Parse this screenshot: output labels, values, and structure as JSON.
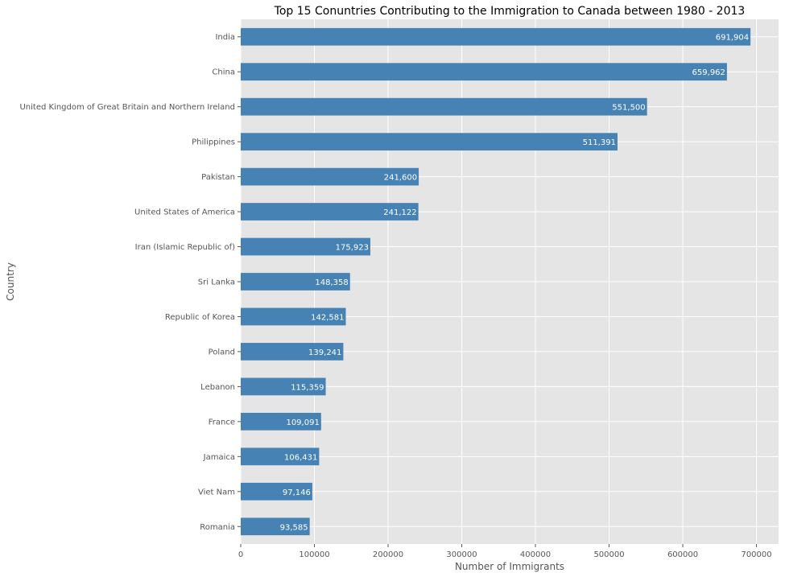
{
  "chart_data": {
    "type": "bar",
    "orientation": "horizontal",
    "title": "Top 15 Conuntries Contributing to the Immigration to Canada between 1980 - 2013",
    "xlabel": "Number of Immigrants",
    "ylabel": "Country",
    "xlim": [
      0,
      730000
    ],
    "x_ticks": [
      0,
      100000,
      200000,
      300000,
      400000,
      500000,
      600000,
      700000
    ],
    "x_tick_labels": [
      "0",
      "100000",
      "200000",
      "300000",
      "400000",
      "500000",
      "600000",
      "700000"
    ],
    "grid": true,
    "bar_color": "#4682b4",
    "background_color": "#e5e5e5",
    "grid_color": "#ffffff",
    "categories": [
      "India",
      "China",
      "United Kingdom of Great Britain and Northern Ireland",
      "Philippines",
      "Pakistan",
      "United States of America",
      "Iran (Islamic Republic of)",
      "Sri Lanka",
      "Republic of Korea",
      "Poland",
      "Lebanon",
      "France",
      "Jamaica",
      "Viet Nam",
      "Romania"
    ],
    "values": [
      691904,
      659962,
      551500,
      511391,
      241600,
      241122,
      175923,
      148358,
      142581,
      139241,
      115359,
      109091,
      106431,
      97146,
      93585
    ],
    "data_labels": [
      "691,904",
      "659,962",
      "551,500",
      "511,391",
      "241,600",
      "241,122",
      "175,923",
      "148,358",
      "142,581",
      "139,241",
      "115,359",
      "109,091",
      "106,431",
      "97,146",
      "93,585"
    ]
  }
}
